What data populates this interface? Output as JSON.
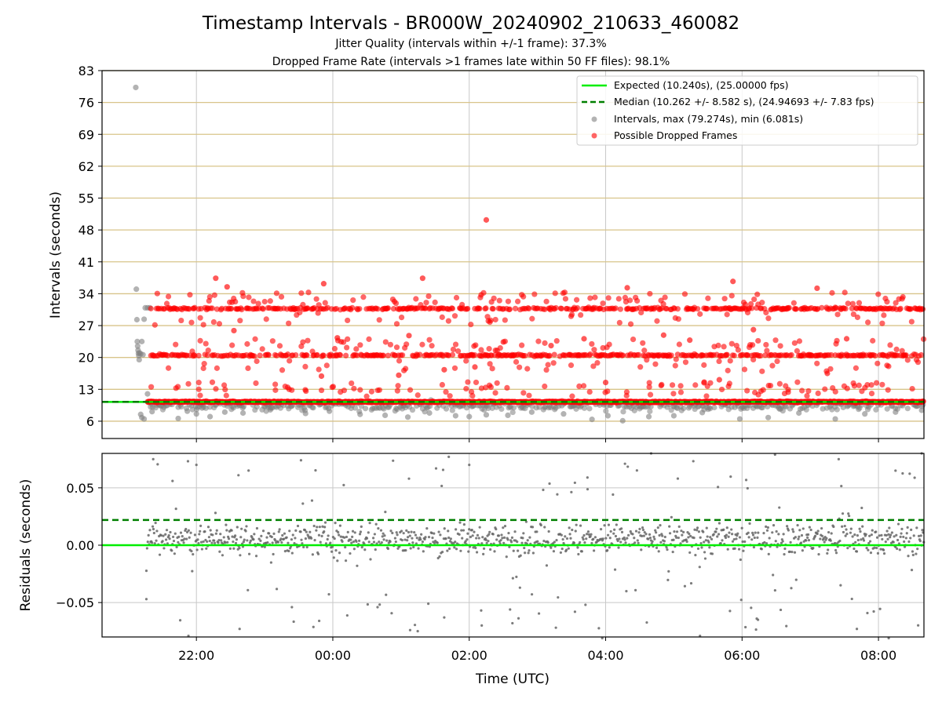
{
  "chart_data": [
    {
      "type": "scatter",
      "panel": "top",
      "title": "Timestamp Intervals - BR000W_20240902_210633_460082",
      "subtitle_1": "Jitter Quality (intervals within +/-1 frame): 37.3%",
      "subtitle_2": "Dropped Frame Rate (intervals >1 frames late within 50 FF files): 98.1%",
      "xlabel": "",
      "ylabel": "Intervals (seconds)",
      "xlim": [
        "2024-09-02 20:37",
        "2024-09-03 08:40"
      ],
      "ylim": [
        2.2,
        83
      ],
      "yticks": [
        6,
        13,
        20,
        27,
        34,
        41,
        48,
        55,
        62,
        69,
        76,
        83
      ],
      "ytick_labels": [
        "6",
        "13",
        "20",
        "27",
        "34",
        "41",
        "48",
        "55",
        "62",
        "69",
        "76",
        "83"
      ],
      "horizontal_gridlines": "goldenrod at each y tick",
      "vertical_gridlines": "light grey at each x tick",
      "legend_position": "upper right",
      "legend": [
        "Expected (10.240s), (25.00000 fps)",
        "Median (10.262 +/- 8.582 s), (24.94693 +/- 7.83 fps)",
        "Intervals, max (79.274s), min (6.081s)",
        "Possible Dropped Frames"
      ],
      "expected_interval_s": 10.24,
      "median_interval_s": 10.262,
      "intervals_max_s": 79.274,
      "intervals_min_s": 6.081,
      "series": [
        {
          "name": "Intervals, max (79.274s), min (6.081s)",
          "color": "#808080",
          "points": [
            {
              "x": "21:06:40",
              "y": 79.3
            },
            {
              "x": "21:07:10",
              "y": 35.0
            },
            {
              "x": "21:07:40",
              "y": 28.3
            },
            {
              "x": "21:08:00",
              "y": 23.5
            },
            {
              "x": "21:08:20",
              "y": 22.5
            },
            {
              "x": "21:08:40",
              "y": 21.6
            },
            {
              "x": "21:09:00",
              "y": 20.9
            },
            {
              "x": "21:09:20",
              "y": 20.4
            },
            {
              "x": "21:09:40",
              "y": 19.5
            },
            {
              "x": "21:10:00",
              "y": 21.0
            },
            {
              "x": "21:11:00",
              "y": 20.8
            },
            {
              "x": "21:12:00",
              "y": 23.5
            },
            {
              "x": "21:13:00",
              "y": 20.6
            },
            {
              "x": "21:14:00",
              "y": 28.4
            },
            {
              "x": "21:15:00",
              "y": 30.9
            },
            {
              "x": "21:17:00",
              "y": 30.9
            },
            {
              "x": "21:19:00",
              "y": 30.9
            },
            {
              "x": "21:11:00",
              "y": 7.5
            },
            {
              "x": "21:12:00",
              "y": 6.8
            },
            {
              "x": "21:14:00",
              "y": 6.5
            },
            {
              "x": "21:17:00",
              "y": 12.0
            },
            {
              "x": "21:21:00",
              "y": 8.1
            },
            {
              "x": "21:44:00",
              "y": 6.6
            },
            {
              "x": "21:52:00",
              "y": 8.2
            },
            {
              "x": "22:00:00",
              "y": 7.6
            },
            {
              "x": "22:05:00",
              "y": 8.9
            },
            {
              "x": "22:12:00",
              "y": 7.0
            },
            {
              "x": "22:25:00",
              "y": 8.0
            },
            {
              "x": "22:41:00",
              "y": 7.8
            },
            {
              "x": "23:05:00",
              "y": 8.5
            },
            {
              "x": "23:36:00",
              "y": 7.7
            },
            {
              "x": "23:57:00",
              "y": 8.2
            },
            {
              "x": "00:24:00",
              "y": 7.5
            },
            {
              "x": "00:46:00",
              "y": 7.3
            },
            {
              "x": "01:06:00",
              "y": 6.9
            },
            {
              "x": "01:25:00",
              "y": 7.8
            },
            {
              "x": "01:48:00",
              "y": 7.2
            },
            {
              "x": "02:00:00",
              "y": 7.0
            },
            {
              "x": "02:15:00",
              "y": 7.4
            },
            {
              "x": "02:34:00",
              "y": 7.3
            },
            {
              "x": "02:55:00",
              "y": 8.0
            },
            {
              "x": "03:23:00",
              "y": 7.6
            },
            {
              "x": "03:48:00",
              "y": 6.4
            },
            {
              "x": "04:02:00",
              "y": 7.2
            },
            {
              "x": "04:15:00",
              "y": 6.1
            },
            {
              "x": "04:38:00",
              "y": 7.0
            },
            {
              "x": "05:00:00",
              "y": 7.2
            },
            {
              "x": "05:25:00",
              "y": 7.9
            },
            {
              "x": "05:58:00",
              "y": 6.5
            },
            {
              "x": "06:23:00",
              "y": 6.8
            },
            {
              "x": "06:50:00",
              "y": 7.8
            },
            {
              "x": "07:22:00",
              "y": 6.5
            },
            {
              "x": "07:48:00",
              "y": 7.6
            },
            {
              "x": "08:15:00",
              "y": 8.0
            },
            {
              "x": "08:38:00",
              "y": 8.4
            }
          ]
        },
        {
          "name": "Possible Dropped Frames",
          "color": "#ff0000",
          "bands": [
            {
              "level": 10.24,
              "from": "21:17",
              "to": "08:40"
            },
            {
              "level": 20.48,
              "from": "21:20",
              "to": "08:40"
            },
            {
              "level": 30.72,
              "from": "21:20",
              "to": "08:40"
            }
          ],
          "points": [
            {
              "x": "22:17:00",
              "y": 37.4
            },
            {
              "x": "22:27:00",
              "y": 35.5
            },
            {
              "x": "23:52:00",
              "y": 36.2
            },
            {
              "x": "01:19:00",
              "y": 37.4
            },
            {
              "x": "02:15:00",
              "y": 50.2
            },
            {
              "x": "04:19:00",
              "y": 35.3
            },
            {
              "x": "05:52:00",
              "y": 36.7
            },
            {
              "x": "07:06:00",
              "y": 35.2
            },
            {
              "x": "22:33:00",
              "y": 25.9
            },
            {
              "x": "00:04:00",
              "y": 24.3
            },
            {
              "x": "01:07:00",
              "y": 24.8
            },
            {
              "x": "02:30:00",
              "y": 23.4
            },
            {
              "x": "03:12:00",
              "y": 22.6
            },
            {
              "x": "03:41:00",
              "y": 24.1
            },
            {
              "x": "04:51:00",
              "y": 24.9
            },
            {
              "x": "05:14:00",
              "y": 23.8
            },
            {
              "x": "06:10:00",
              "y": 26.1
            },
            {
              "x": "07:32:00",
              "y": 24.1
            },
            {
              "x": "23:50:00",
              "y": 15.9
            },
            {
              "x": "00:58:00",
              "y": 16.1
            },
            {
              "x": "01:38:00",
              "y": 17.3
            },
            {
              "x": "02:05:00",
              "y": 17.9
            },
            {
              "x": "04:00:00",
              "y": 14.5
            },
            {
              "x": "05:40:00",
              "y": 15.1
            },
            {
              "x": "07:15:00",
              "y": 16.5
            }
          ]
        },
        {
          "name": "Expected (10.240s), (25.00000 fps)",
          "color": "#00ee00",
          "values": [
            10.24
          ]
        },
        {
          "name": "Median (10.262 +/- 8.582 s), (24.94693 +/- 7.83 fps)",
          "color": "#007f00",
          "values": [
            10.262
          ]
        }
      ]
    },
    {
      "type": "scatter",
      "panel": "bottom",
      "xlabel": "Time (UTC)",
      "ylabel": "Residuals (seconds)",
      "xlim": [
        "2024-09-02 20:37",
        "2024-09-03 08:40"
      ],
      "ylim": [
        -0.08,
        0.08
      ],
      "yticks": [
        -0.05,
        0.0,
        0.05
      ],
      "ytick_labels": [
        "−0.05",
        "0.00",
        "0.05"
      ],
      "xticks": [
        "22:00",
        "00:00",
        "02:00",
        "04:00",
        "06:00",
        "08:00"
      ],
      "grid": true,
      "series": [
        {
          "name": "",
          "color": "#000000",
          "description_source": "dense residual cloud centered near 0.005, spread roughly -0.08 to 0.08",
          "center": 0.005,
          "spread": 0.02,
          "points": [
            {
              "x": "21:22:00",
              "y": 0.075
            },
            {
              "x": "21:39:00",
              "y": 0.056
            },
            {
              "x": "22:00:00",
              "y": 0.07
            },
            {
              "x": "22:37:00",
              "y": 0.061
            },
            {
              "x": "23:32:00",
              "y": 0.074
            },
            {
              "x": "01:07:00",
              "y": 0.058
            },
            {
              "x": "01:42:00",
              "y": 0.077
            },
            {
              "x": "02:00:00",
              "y": 0.07
            },
            {
              "x": "03:44:00",
              "y": 0.059
            },
            {
              "x": "04:17:00",
              "y": 0.071
            },
            {
              "x": "04:40:00",
              "y": 0.08
            },
            {
              "x": "06:29:00",
              "y": 0.079
            },
            {
              "x": "07:25:00",
              "y": 0.075
            },
            {
              "x": "08:15:00",
              "y": 0.065
            },
            {
              "x": "08:38:00",
              "y": 0.08
            },
            {
              "x": "21:16:00",
              "y": -0.047
            },
            {
              "x": "21:53:00",
              "y": -0.079
            },
            {
              "x": "22:38:00",
              "y": -0.073
            },
            {
              "x": "23:24:00",
              "y": -0.054
            },
            {
              "x": "23:48:00",
              "y": -0.066
            },
            {
              "x": "01:08:00",
              "y": -0.074
            },
            {
              "x": "01:38:00",
              "y": -0.063
            },
            {
              "x": "02:11:00",
              "y": -0.07
            },
            {
              "x": "02:38:00",
              "y": -0.068
            },
            {
              "x": "03:33:00",
              "y": -0.058
            },
            {
              "x": "03:57:00",
              "y": -0.081
            },
            {
              "x": "05:23:00",
              "y": -0.079
            },
            {
              "x": "06:14:00",
              "y": -0.065
            },
            {
              "x": "07:41:00",
              "y": -0.073
            },
            {
              "x": "08:09:00",
              "y": -0.081
            }
          ]
        },
        {
          "name": "",
          "color": "#00ee00",
          "values": [
            0.0
          ]
        },
        {
          "name": "",
          "color": "#007f00",
          "values": [
            0.022
          ]
        }
      ]
    }
  ]
}
